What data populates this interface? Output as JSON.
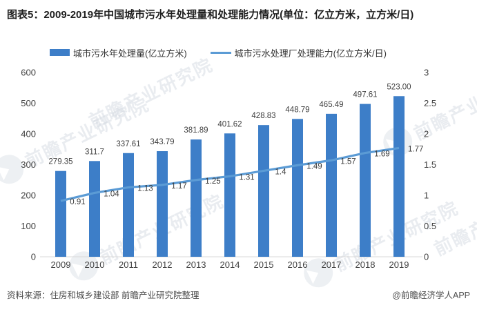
{
  "title": "图表5：2009-2019年中国城市污水年处理量和处理能力情况(单位：亿立方米，立方米/日)",
  "legend": [
    {
      "label": "城市污水年处理量(亿立方米)",
      "type": "bar"
    },
    {
      "label": "城市污水处理厂处理能力(亿立方米/日)",
      "type": "line"
    }
  ],
  "chart_data": {
    "type": "bar+line",
    "title": "2009-2019年中国城市污水年处理量和处理能力情况",
    "categories": [
      "2009",
      "2010",
      "2011",
      "2012",
      "2013",
      "2014",
      "2015",
      "2016",
      "2017",
      "2018",
      "2019"
    ],
    "series": [
      {
        "name": "城市污水年处理量(亿立方米)",
        "type": "bar",
        "axis": "left",
        "color": "#3D7EC8",
        "values": [
          279.35,
          311.7,
          337.61,
          343.79,
          381.89,
          401.62,
          428.83,
          448.79,
          465.49,
          497.61,
          523.0
        ],
        "labels": [
          "279.35",
          "311.7",
          "337.61",
          "343.79",
          "381.89",
          "401.62",
          "428.83",
          "448.79",
          "465.49",
          "497.61",
          "523.00"
        ]
      },
      {
        "name": "城市污水处理厂处理能力(亿立方米/日)",
        "type": "line",
        "axis": "right",
        "color": "#5B9BD5",
        "values": [
          0.91,
          1.04,
          1.13,
          1.17,
          1.25,
          1.31,
          1.4,
          1.49,
          1.57,
          1.69,
          1.77
        ],
        "labels": [
          "0.91",
          "1.04",
          "1.13",
          "1.17",
          "1.25",
          "1.31",
          "1.4",
          "1.49",
          "1.57",
          "1.69",
          "1.77"
        ]
      }
    ],
    "left_axis": {
      "min": 0,
      "max": 600,
      "ticks": [
        0,
        100,
        200,
        300,
        400,
        500,
        600
      ],
      "tick_labels": [
        "0",
        "100",
        "200",
        "300",
        "400",
        "500",
        "600"
      ]
    },
    "right_axis": {
      "min": 0,
      "max": 3,
      "ticks": [
        0,
        0.5,
        1,
        1.5,
        2,
        2.5,
        3
      ],
      "tick_labels": [
        "0",
        "0.5",
        "1",
        "1.5",
        "2",
        "2.5",
        "3"
      ]
    },
    "grid": false,
    "legend_position": "top"
  },
  "watermark": {
    "text": "前瞻产业研究院"
  },
  "footer": {
    "source": "资料来源：住房和城乡建设部 前瞻产业研究院整理",
    "credit": "@前瞻经济学人APP"
  }
}
